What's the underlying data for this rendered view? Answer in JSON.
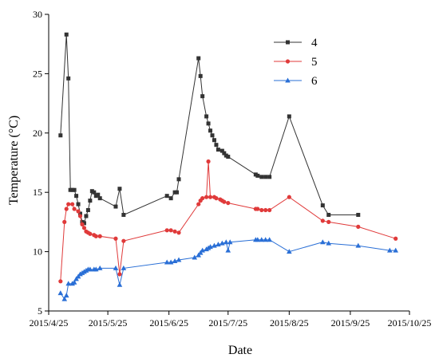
{
  "chart_data": {
    "type": "line",
    "xlabel": "Date",
    "ylabel": "Temperature (°C)",
    "xlim": [
      "2015-04-25",
      "2015-10-25"
    ],
    "ylim": [
      5,
      30
    ],
    "xticks": [
      "2015/4/25",
      "2015/5/25",
      "2015/6/25",
      "2015/7/25",
      "2015/8/25",
      "2015/9/25",
      "2015/10/25"
    ],
    "yticks": [
      5,
      10,
      15,
      20,
      25,
      30
    ],
    "legend_position": "top-right",
    "series": [
      {
        "name": "4",
        "color": "#333333",
        "marker": "square",
        "points": [
          [
            "2015-05-01",
            19.8
          ],
          [
            "2015-05-04",
            28.3
          ],
          [
            "2015-05-05",
            24.6
          ],
          [
            "2015-05-06",
            15.2
          ],
          [
            "2015-05-07",
            15.2
          ],
          [
            "2015-05-08",
            15.2
          ],
          [
            "2015-05-09",
            14.7
          ],
          [
            "2015-05-10",
            14.0
          ],
          [
            "2015-05-11",
            13.2
          ],
          [
            "2015-05-12",
            12.5
          ],
          [
            "2015-05-13",
            12.4
          ],
          [
            "2015-05-14",
            13.0
          ],
          [
            "2015-05-15",
            13.5
          ],
          [
            "2015-05-16",
            14.3
          ],
          [
            "2015-05-17",
            15.1
          ],
          [
            "2015-05-18",
            15.0
          ],
          [
            "2015-05-19",
            14.7
          ],
          [
            "2015-05-20",
            14.8
          ],
          [
            "2015-05-21",
            14.5
          ],
          [
            "2015-05-29",
            13.8
          ],
          [
            "2015-05-31",
            15.3
          ],
          [
            "2015-06-02",
            13.1
          ],
          [
            "2015-06-24",
            14.7
          ],
          [
            "2015-06-26",
            14.5
          ],
          [
            "2015-06-28",
            15.0
          ],
          [
            "2015-06-29",
            15.0
          ],
          [
            "2015-06-30",
            16.1
          ],
          [
            "2015-07-10",
            26.3
          ],
          [
            "2015-07-11",
            24.8
          ],
          [
            "2015-07-12",
            23.1
          ],
          [
            "2015-07-14",
            21.4
          ],
          [
            "2015-07-15",
            20.8
          ],
          [
            "2015-07-16",
            20.2
          ],
          [
            "2015-07-17",
            19.8
          ],
          [
            "2015-07-18",
            19.4
          ],
          [
            "2015-07-19",
            19.0
          ],
          [
            "2015-07-20",
            18.6
          ],
          [
            "2015-07-22",
            18.5
          ],
          [
            "2015-07-23",
            18.3
          ],
          [
            "2015-07-24",
            18.1
          ],
          [
            "2015-07-25",
            18.0
          ],
          [
            "2015-08-08",
            16.5
          ],
          [
            "2015-08-09",
            16.4
          ],
          [
            "2015-08-11",
            16.3
          ],
          [
            "2015-08-13",
            16.3
          ],
          [
            "2015-08-15",
            16.3
          ],
          [
            "2015-08-25",
            21.4
          ],
          [
            "2015-09-11",
            13.9
          ],
          [
            "2015-09-14",
            13.1
          ],
          [
            "2015-09-29",
            13.1
          ]
        ]
      },
      {
        "name": "5",
        "color": "#e03a3a",
        "marker": "circle",
        "points": [
          [
            "2015-05-01",
            7.5
          ],
          [
            "2015-05-03",
            12.5
          ],
          [
            "2015-05-04",
            13.6
          ],
          [
            "2015-05-05",
            14.0
          ],
          [
            "2015-05-07",
            14.0
          ],
          [
            "2015-05-08",
            13.6
          ],
          [
            "2015-05-10",
            13.4
          ],
          [
            "2015-05-11",
            13.0
          ],
          [
            "2015-05-12",
            12.3
          ],
          [
            "2015-05-13",
            12.0
          ],
          [
            "2015-05-14",
            11.7
          ],
          [
            "2015-05-15",
            11.6
          ],
          [
            "2015-05-16",
            11.5
          ],
          [
            "2015-05-18",
            11.4
          ],
          [
            "2015-05-19",
            11.3
          ],
          [
            "2015-05-21",
            11.3
          ],
          [
            "2015-05-29",
            11.1
          ],
          [
            "2015-05-31",
            8.1
          ],
          [
            "2015-06-02",
            10.9
          ],
          [
            "2015-06-24",
            11.8
          ],
          [
            "2015-06-26",
            11.8
          ],
          [
            "2015-06-28",
            11.7
          ],
          [
            "2015-06-30",
            11.6
          ],
          [
            "2015-07-10",
            14.0
          ],
          [
            "2015-07-11",
            14.3
          ],
          [
            "2015-07-12",
            14.5
          ],
          [
            "2015-07-14",
            14.6
          ],
          [
            "2015-07-15",
            17.6
          ],
          [
            "2015-07-16",
            14.6
          ],
          [
            "2015-07-18",
            14.6
          ],
          [
            "2015-07-19",
            14.5
          ],
          [
            "2015-07-21",
            14.4
          ],
          [
            "2015-07-22",
            14.3
          ],
          [
            "2015-07-23",
            14.2
          ],
          [
            "2015-07-25",
            14.1
          ],
          [
            "2015-08-08",
            13.6
          ],
          [
            "2015-08-09",
            13.6
          ],
          [
            "2015-08-11",
            13.5
          ],
          [
            "2015-08-13",
            13.5
          ],
          [
            "2015-08-15",
            13.5
          ],
          [
            "2015-08-25",
            14.6
          ],
          [
            "2015-09-11",
            12.6
          ],
          [
            "2015-09-14",
            12.5
          ],
          [
            "2015-09-29",
            12.1
          ],
          [
            "2015-10-18",
            11.1
          ]
        ]
      },
      {
        "name": "6",
        "color": "#2a6fd6",
        "marker": "triangle",
        "points": [
          [
            "2015-05-01",
            6.5
          ],
          [
            "2015-05-03",
            6.0
          ],
          [
            "2015-05-04",
            6.3
          ],
          [
            "2015-05-05",
            7.3
          ],
          [
            "2015-05-07",
            7.3
          ],
          [
            "2015-05-08",
            7.4
          ],
          [
            "2015-05-09",
            7.7
          ],
          [
            "2015-05-10",
            7.9
          ],
          [
            "2015-05-11",
            8.1
          ],
          [
            "2015-05-12",
            8.2
          ],
          [
            "2015-05-13",
            8.3
          ],
          [
            "2015-05-14",
            8.4
          ],
          [
            "2015-05-15",
            8.5
          ],
          [
            "2015-05-16",
            8.5
          ],
          [
            "2015-05-18",
            8.5
          ],
          [
            "2015-05-19",
            8.5
          ],
          [
            "2015-05-21",
            8.6
          ],
          [
            "2015-05-29",
            8.6
          ],
          [
            "2015-05-31",
            7.2
          ],
          [
            "2015-06-02",
            8.6
          ],
          [
            "2015-06-24",
            9.1
          ],
          [
            "2015-06-26",
            9.1
          ],
          [
            "2015-06-28",
            9.2
          ],
          [
            "2015-06-30",
            9.3
          ],
          [
            "2015-07-08",
            9.5
          ],
          [
            "2015-07-10",
            9.7
          ],
          [
            "2015-07-11",
            9.9
          ],
          [
            "2015-07-12",
            10.1
          ],
          [
            "2015-07-14",
            10.2
          ],
          [
            "2015-07-15",
            10.3
          ],
          [
            "2015-07-16",
            10.4
          ],
          [
            "2015-07-18",
            10.5
          ],
          [
            "2015-07-20",
            10.6
          ],
          [
            "2015-07-22",
            10.7
          ],
          [
            "2015-07-24",
            10.8
          ],
          [
            "2015-07-25",
            10.1
          ],
          [
            "2015-07-26",
            10.8
          ],
          [
            "2015-08-08",
            11.0
          ],
          [
            "2015-08-09",
            11.0
          ],
          [
            "2015-08-11",
            11.0
          ],
          [
            "2015-08-13",
            11.0
          ],
          [
            "2015-08-15",
            11.0
          ],
          [
            "2015-08-25",
            10.0
          ],
          [
            "2015-09-11",
            10.8
          ],
          [
            "2015-09-14",
            10.7
          ],
          [
            "2015-09-29",
            10.5
          ],
          [
            "2015-10-15",
            10.1
          ],
          [
            "2015-10-18",
            10.1
          ]
        ]
      }
    ]
  }
}
